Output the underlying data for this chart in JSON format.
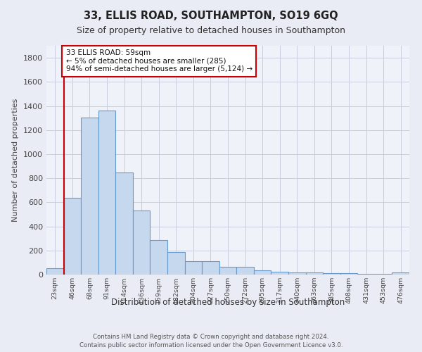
{
  "title1": "33, ELLIS ROAD, SOUTHAMPTON, SO19 6GQ",
  "title2": "Size of property relative to detached houses in Southampton",
  "xlabel": "Distribution of detached houses by size in Southampton",
  "ylabel": "Number of detached properties",
  "categories": [
    "23sqm",
    "46sqm",
    "68sqm",
    "91sqm",
    "114sqm",
    "136sqm",
    "159sqm",
    "182sqm",
    "204sqm",
    "227sqm",
    "250sqm",
    "272sqm",
    "295sqm",
    "317sqm",
    "340sqm",
    "363sqm",
    "385sqm",
    "408sqm",
    "431sqm",
    "453sqm",
    "476sqm"
  ],
  "values": [
    55,
    635,
    1305,
    1365,
    845,
    530,
    285,
    185,
    110,
    110,
    65,
    65,
    38,
    23,
    15,
    15,
    10,
    10,
    5,
    5,
    15
  ],
  "bar_color": "#c5d8ee",
  "bar_edge_color": "#6699cc",
  "vline_x": 0.5,
  "vline_color": "#cc0000",
  "annotation_text": "33 ELLIS ROAD: 59sqm\n← 5% of detached houses are smaller (285)\n94% of semi-detached houses are larger (5,124) →",
  "annotation_box_color": "#ffffff",
  "annotation_box_edge": "#cc0000",
  "ylim": [
    0,
    1900
  ],
  "yticks": [
    0,
    200,
    400,
    600,
    800,
    1000,
    1200,
    1400,
    1600,
    1800
  ],
  "footer1": "Contains HM Land Registry data © Crown copyright and database right 2024.",
  "footer2": "Contains public sector information licensed under the Open Government Licence v3.0.",
  "bg_color": "#eaecf5",
  "plot_bg_color": "#f0f2f9",
  "grid_color": "#c8cce0"
}
